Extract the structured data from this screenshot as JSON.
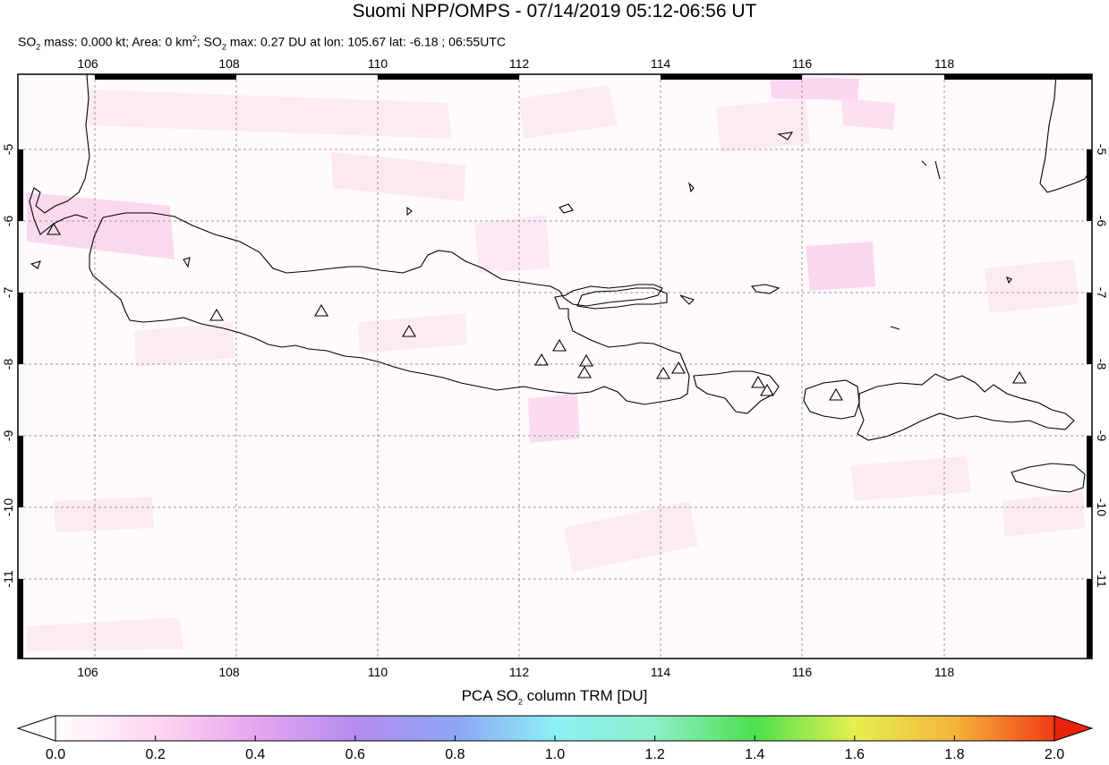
{
  "title": "Suomi NPP/OMPS - 07/14/2019 05:12-06:56 UT",
  "subtitle": {
    "prefix": "SO",
    "sub1": "2",
    "part1": " mass: 0.000 kt; Area: 0 km",
    "sup1": "2",
    "part2": "; SO",
    "sub2": "2",
    "part3": " max: 0.27 DU at lon: 105.67 lat: -6.18 ; 06:55UTC"
  },
  "map": {
    "lon_ticks": [
      "106",
      "108",
      "110",
      "112",
      "114",
      "116",
      "118"
    ],
    "lat_ticks": [
      "-5",
      "-6",
      "-7",
      "-8",
      "-9",
      "-10",
      "-11"
    ]
  },
  "colorbar": {
    "title_prefix": "PCA SO",
    "title_sub": "2",
    "title_suffix": " column TRM [DU]",
    "labels": [
      "0.0",
      "0.2",
      "0.4",
      "0.6",
      "0.8",
      "1.0",
      "1.2",
      "1.4",
      "1.6",
      "1.8",
      "2.0"
    ],
    "colors": [
      "#ffffff",
      "#ffd6f0",
      "#e6a6f0",
      "#b48cf0",
      "#8ca6f5",
      "#8cf0f5",
      "#8cf0c8",
      "#4ee04e",
      "#e6f04e",
      "#f5b43c",
      "#f03c14",
      "#e8230a"
    ]
  }
}
